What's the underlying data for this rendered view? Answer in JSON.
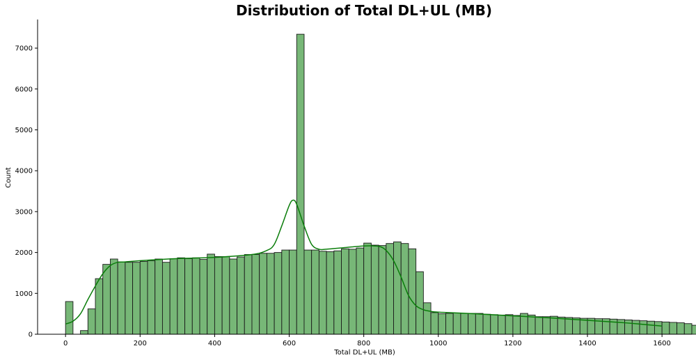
{
  "chart_data": {
    "type": "bar",
    "title": "Distribution of Total DL+UL (MB)",
    "xlabel": "Total DL+UL (MB)",
    "ylabel": "Count",
    "xlim": [
      -75,
      1680
    ],
    "ylim": [
      0,
      7700
    ],
    "xticks": [
      0,
      200,
      400,
      600,
      800,
      1000,
      1200,
      1400,
      1600
    ],
    "yticks": [
      0,
      1000,
      2000,
      3000,
      4000,
      5000,
      6000,
      7000
    ],
    "bin_start": 0,
    "bin_width": 20,
    "values": [
      800,
      0,
      90,
      620,
      1360,
      1710,
      1840,
      1770,
      1760,
      1760,
      1780,
      1800,
      1840,
      1760,
      1850,
      1870,
      1850,
      1870,
      1830,
      1960,
      1900,
      1900,
      1840,
      1890,
      1950,
      1950,
      1980,
      1980,
      2000,
      2060,
      2060,
      7340,
      2060,
      2060,
      2030,
      2020,
      2040,
      2090,
      2080,
      2110,
      2230,
      2180,
      2170,
      2220,
      2260,
      2220,
      2090,
      1530,
      770,
      530,
      500,
      510,
      520,
      510,
      510,
      510,
      490,
      480,
      470,
      480,
      460,
      510,
      470,
      430,
      430,
      440,
      420,
      410,
      400,
      390,
      390,
      380,
      380,
      370,
      360,
      350,
      340,
      330,
      320,
      310,
      300,
      290,
      280,
      260,
      220
    ],
    "kde": {
      "x": [
        0,
        20,
        40,
        60,
        80,
        100,
        120,
        140,
        160,
        200,
        300,
        400,
        500,
        540,
        560,
        580,
        600,
        610,
        620,
        640,
        660,
        680,
        700,
        750,
        800,
        840,
        860,
        880,
        900,
        920,
        940,
        960,
        980,
        1000,
        1100,
        1200,
        1300,
        1400,
        1500,
        1550,
        1600
      ],
      "y": [
        250,
        320,
        500,
        850,
        1180,
        1480,
        1680,
        1760,
        1770,
        1800,
        1850,
        1880,
        1950,
        2050,
        2200,
        2650,
        3150,
        3280,
        3180,
        2650,
        2200,
        2080,
        2080,
        2120,
        2160,
        2150,
        2050,
        1800,
        1400,
        950,
        700,
        600,
        560,
        540,
        500,
        450,
        400,
        340,
        280,
        240,
        200
      ]
    },
    "bar_color": "#77b777",
    "edge_color": "#1a1a1a",
    "kde_color": "#0a7d0a",
    "grid": false
  }
}
